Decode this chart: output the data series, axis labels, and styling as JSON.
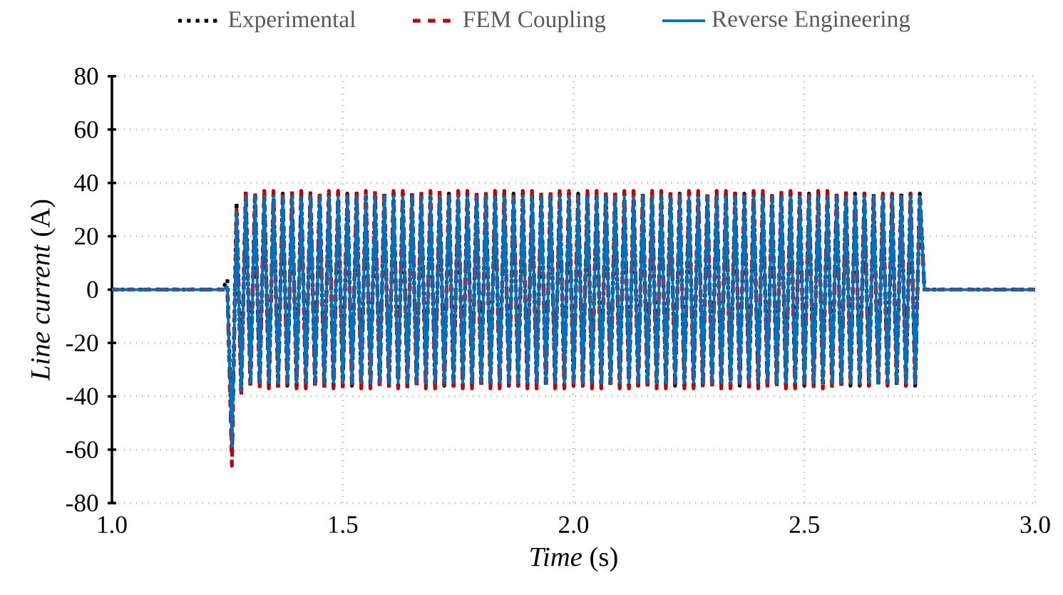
{
  "chart_data": {
    "type": "line",
    "xlabel": "*Time* (s)",
    "ylabel": "*Line current* (A)",
    "xlim": [
      1.0,
      3.0
    ],
    "ylim": [
      -80,
      80
    ],
    "xticks": [
      {
        "value": 1.0,
        "label": "1.0"
      },
      {
        "value": 1.5,
        "label": "1.5"
      },
      {
        "value": 2.0,
        "label": "2.0"
      },
      {
        "value": 2.5,
        "label": "2.5"
      },
      {
        "value": 3.0,
        "label": "3.0"
      }
    ],
    "yticks": [
      -80,
      -60,
      -40,
      -20,
      0,
      20,
      40,
      60,
      80
    ],
    "grid": true,
    "legend": "top",
    "x": [
      1.0,
      1.24,
      1.25,
      1.26,
      1.27,
      1.28,
      1.29,
      1.3,
      1.31,
      1.32,
      1.33,
      1.34,
      1.35,
      1.36,
      1.37,
      1.38,
      1.39,
      1.4,
      1.41,
      1.42,
      1.43,
      1.44,
      1.45,
      1.46,
      1.47,
      1.48,
      1.49,
      1.5,
      1.51,
      1.52,
      1.53,
      1.54,
      1.55,
      1.56,
      1.57,
      1.58,
      1.59,
      1.6,
      1.61,
      1.62,
      1.63,
      1.64,
      1.65,
      1.66,
      1.67,
      1.68,
      1.69,
      1.7,
      1.71,
      1.72,
      1.73,
      1.74,
      1.75,
      1.76,
      1.77,
      1.78,
      1.79,
      1.8,
      1.81,
      1.82,
      1.83,
      1.84,
      1.85,
      1.86,
      1.87,
      1.88,
      1.89,
      1.9,
      1.91,
      1.92,
      1.93,
      1.94,
      1.95,
      1.96,
      1.97,
      1.98,
      1.99,
      2.0,
      2.01,
      2.02,
      2.03,
      2.04,
      2.05,
      2.06,
      2.07,
      2.08,
      2.09,
      2.1,
      2.11,
      2.12,
      2.13,
      2.14,
      2.15,
      2.16,
      2.17,
      2.18,
      2.19,
      2.2,
      2.21,
      2.22,
      2.23,
      2.24,
      2.25,
      2.26,
      2.27,
      2.28,
      2.29,
      2.3,
      2.31,
      2.32,
      2.33,
      2.34,
      2.35,
      2.36,
      2.37,
      2.38,
      2.39,
      2.4,
      2.41,
      2.42,
      2.43,
      2.44,
      2.45,
      2.46,
      2.47,
      2.48,
      2.49,
      2.5,
      2.51,
      2.52,
      2.53,
      2.54,
      2.55,
      2.56,
      2.57,
      2.58,
      2.59,
      2.6,
      2.61,
      2.62,
      2.63,
      2.64,
      2.65,
      2.66,
      2.67,
      2.68,
      2.69,
      2.7,
      2.71,
      2.72,
      2.73,
      2.74,
      2.75,
      2.76,
      3.0
    ],
    "series": [
      {
        "name": "Experimental",
        "color": "#000000",
        "line_style": "dotted",
        "values": [
          0,
          0,
          4,
          -60,
          33,
          -38,
          36,
          -36,
          36,
          -36,
          36,
          -36,
          36,
          -36,
          36,
          -36,
          36,
          -36,
          36,
          -36,
          36,
          -36,
          36,
          -36,
          36,
          -36,
          36,
          -36,
          36,
          -36,
          36,
          -36,
          36,
          -36,
          36,
          -36,
          36,
          -36,
          36,
          -36,
          36,
          -36,
          36,
          -36,
          36,
          -36,
          36,
          -36,
          36,
          -36,
          36,
          -36,
          36,
          -36,
          36,
          -36,
          36,
          -36,
          36,
          -36,
          36,
          -36,
          36,
          -36,
          36,
          -36,
          36,
          -36,
          36,
          -36,
          36,
          -36,
          36,
          -36,
          36,
          -36,
          36,
          -36,
          36,
          -36,
          36,
          -36,
          36,
          -36,
          36,
          -36,
          36,
          -36,
          36,
          -36,
          36,
          -36,
          36,
          -36,
          36,
          -36,
          36,
          -36,
          36,
          -36,
          36,
          -36,
          36,
          -36,
          36,
          -36,
          36,
          -36,
          36,
          -36,
          36,
          -36,
          36,
          -36,
          36,
          -36,
          36,
          -36,
          36,
          -36,
          36,
          -36,
          36,
          -36,
          36,
          -36,
          36,
          -36,
          36,
          -36,
          36,
          -36,
          36,
          -36,
          36,
          -36,
          36,
          -36,
          36,
          -36,
          36,
          -36,
          36,
          -36,
          36,
          -36,
          36,
          -36,
          36,
          -36,
          36,
          -36,
          36,
          0,
          0
        ]
      },
      {
        "name": "FEM Coupling",
        "color": "#c00000",
        "line_style": "dashed",
        "values": [
          0,
          0,
          0,
          -66,
          30,
          -40,
          37,
          -37,
          37,
          -37,
          37,
          -37,
          37,
          -37,
          37,
          -37,
          37,
          -37,
          37,
          -37,
          37,
          -37,
          37,
          -37,
          37,
          -37,
          37,
          -37,
          37,
          -37,
          37,
          -37,
          37,
          -37,
          37,
          -37,
          37,
          -37,
          37,
          -37,
          37,
          -37,
          37,
          -37,
          37,
          -37,
          37,
          -37,
          37,
          -37,
          37,
          -37,
          37,
          -37,
          37,
          -37,
          37,
          -37,
          37,
          -37,
          37,
          -37,
          37,
          -37,
          37,
          -37,
          37,
          -37,
          37,
          -37,
          37,
          -37,
          37,
          -37,
          37,
          -37,
          37,
          -37,
          37,
          -37,
          37,
          -37,
          37,
          -37,
          37,
          -37,
          37,
          -37,
          37,
          -37,
          37,
          -37,
          37,
          -37,
          37,
          -37,
          37,
          -37,
          37,
          -37,
          37,
          -37,
          37,
          -37,
          37,
          -37,
          37,
          -37,
          37,
          -37,
          37,
          -37,
          37,
          -37,
          37,
          -37,
          37,
          -37,
          37,
          -37,
          37,
          -37,
          37,
          -37,
          37,
          -37,
          37,
          -37,
          37,
          -37,
          37,
          -37,
          37,
          -37,
          37,
          -37,
          37,
          -36,
          36,
          -36,
          36,
          -36,
          36,
          -36,
          36,
          -36,
          36,
          -36,
          36,
          -36,
          36,
          -36,
          36,
          0,
          0
        ]
      },
      {
        "name": "Reverse Engineering",
        "color": "#0070c0",
        "line_style": "solid",
        "values": [
          0,
          0,
          1,
          -59,
          29,
          -38,
          35,
          -35,
          35,
          -35,
          35,
          -35,
          35,
          -35,
          35,
          -35,
          35,
          -35,
          35,
          -35,
          35,
          -35,
          35,
          -35,
          35,
          -35,
          35,
          -35,
          35,
          -35,
          35,
          -35,
          35,
          -35,
          35,
          -35,
          35,
          -35,
          35,
          -35,
          35,
          -35,
          35,
          -35,
          35,
          -35,
          35,
          -35,
          35,
          -35,
          35,
          -35,
          35,
          -35,
          35,
          -35,
          35,
          -35,
          35,
          -35,
          35,
          -35,
          35,
          -35,
          35,
          -35,
          35,
          -35,
          35,
          -35,
          35,
          -35,
          35,
          -35,
          35,
          -35,
          35,
          -35,
          35,
          -35,
          35,
          -35,
          35,
          -35,
          35,
          -35,
          35,
          -35,
          35,
          -35,
          35,
          -35,
          35,
          -35,
          35,
          -35,
          35,
          -35,
          35,
          -35,
          35,
          -35,
          35,
          -35,
          35,
          -35,
          35,
          -35,
          35,
          -35,
          35,
          -35,
          35,
          -35,
          35,
          -35,
          35,
          -35,
          35,
          -35,
          35,
          -35,
          35,
          -35,
          35,
          -35,
          35,
          -35,
          35,
          -35,
          35,
          -35,
          35,
          -35,
          35,
          -35,
          35,
          -35,
          35,
          -35,
          35,
          -35,
          35,
          -35,
          35,
          -35,
          35,
          -35,
          35,
          -35,
          35,
          -35,
          35,
          0,
          0
        ]
      }
    ]
  }
}
